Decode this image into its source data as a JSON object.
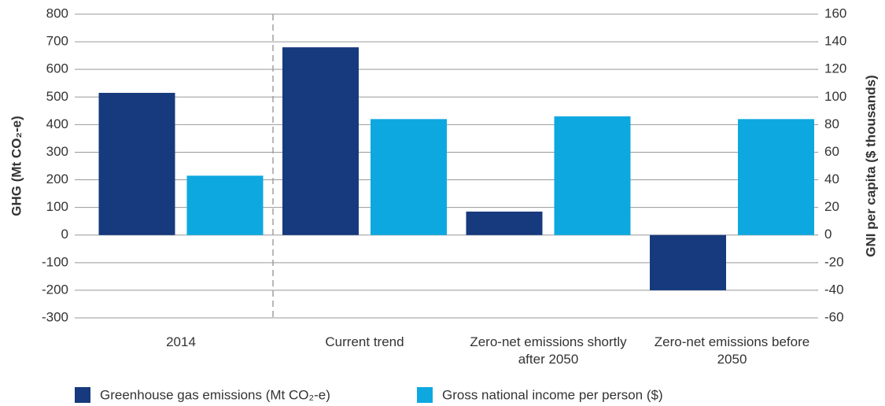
{
  "chart_data": {
    "type": "bar",
    "categories": [
      "2014",
      "Current trend",
      "Zero-net emissions shortly after 2050",
      "Zero-net emissions before 2050"
    ],
    "series": [
      {
        "name": "Greenhouse gas emissions (Mt CO₂-e)",
        "color": "#163a7d",
        "values": [
          515,
          680,
          85,
          -200
        ]
      },
      {
        "name": "Gross national income per person ($)",
        "color": "#0ea8e0",
        "axis": "y2",
        "values": [
          43,
          84,
          86,
          84
        ]
      }
    ],
    "ylabel": "GHG (Mt CO₂-e)",
    "y2label": "GNI per capita ($ thousands)",
    "ylim": [
      -300,
      800
    ],
    "yticks": [
      -300,
      -200,
      -100,
      0,
      100,
      200,
      300,
      400,
      500,
      600,
      700,
      800
    ],
    "y2lim": [
      -60,
      160
    ],
    "y2ticks": [
      -60,
      -40,
      -20,
      0,
      20,
      40,
      60,
      80,
      100,
      120,
      140,
      160
    ],
    "grid": true,
    "legend": "bottom"
  }
}
